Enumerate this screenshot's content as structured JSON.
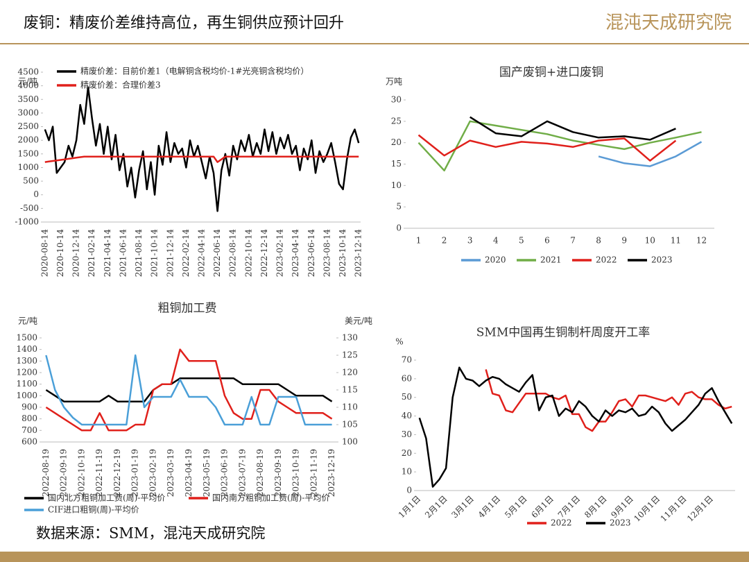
{
  "header": {
    "title": "废铜：精废价差维持高位，再生铜供应预计回升",
    "logo": "混沌天成研究院"
  },
  "footer": "数据来源：SMM，混沌天成研究院",
  "chart_data": [
    {
      "type": "line",
      "ylabel": "元/吨",
      "categories": [
        "2020-08-14",
        null,
        null,
        null,
        "2020-10-14",
        null,
        null,
        null,
        "2020-12-14",
        null,
        null,
        null,
        "2021-02-14",
        null,
        null,
        null,
        "2021-04-14",
        null,
        null,
        null,
        "2021-06-14",
        null,
        null,
        null,
        "2021-08-14",
        null,
        null,
        null,
        "2021-10-14",
        null,
        null,
        null,
        "2021-12-14",
        null,
        null,
        null,
        "2022-02-14",
        null,
        null,
        null,
        "2022-04-14",
        null,
        null,
        null,
        "2022-06-14",
        null,
        null,
        null,
        "2022-08-14",
        null,
        null,
        null,
        "2022-10-14",
        null,
        null,
        null,
        "2022-12-14",
        null,
        null,
        null,
        "2023-02-14",
        null,
        null,
        null,
        "2023-04-14",
        null,
        null,
        null,
        "2023-06-14",
        null,
        null,
        null,
        "2023-08-14",
        null,
        null,
        null,
        "2023-10-14",
        null,
        null,
        null,
        "2023-12-14"
      ],
      "series": [
        {
          "name": "精废价差：目前价差1（电解铜含税均价-1#光亮铜含税均价）",
          "color": "#000000",
          "values": [
            2400,
            2000,
            2500,
            800,
            1000,
            1200,
            1800,
            1400,
            2000,
            3300,
            2600,
            3950,
            2800,
            1800,
            2600,
            1500,
            2500,
            1300,
            2200,
            900,
            1500,
            300,
            1000,
            -100,
            900,
            1600,
            200,
            1200,
            0,
            1800,
            1100,
            2300,
            1200,
            1900,
            1500,
            1700,
            1000,
            2000,
            1400,
            1800,
            1200,
            600,
            1400,
            800,
            -600,
            900,
            1500,
            700,
            1800,
            1300,
            2000,
            1600,
            2200,
            1400,
            1900,
            1500,
            2400,
            1600,
            2300,
            1500,
            2100,
            1700,
            2200,
            1500,
            1800,
            900,
            1700,
            1300,
            2000,
            800,
            1600,
            1200,
            1500,
            1900,
            1200,
            400,
            200,
            1300,
            2100,
            2400,
            1900
          ]
        },
        {
          "name": "精废价差：合理价差3",
          "color": "#e0201b",
          "values": [
            1200,
            1220,
            1240,
            1260,
            1280,
            1300,
            1320,
            1340,
            1360,
            1380,
            1400,
            1400,
            1400,
            1400,
            1400,
            1400,
            1400,
            1400,
            1400,
            1400,
            1400,
            1400,
            1400,
            1400,
            1400,
            1400,
            1400,
            1400,
            1400,
            1400,
            1400,
            1400,
            1400,
            1400,
            1400,
            1400,
            1400,
            1400,
            1400,
            1400,
            1400,
            1400,
            1400,
            1400,
            1200,
            1300,
            1400,
            1400,
            1400,
            1400,
            1400,
            1400,
            1400,
            1400,
            1400,
            1400,
            1400,
            1400,
            1400,
            1400,
            1400,
            1400,
            1400,
            1400,
            1400,
            1400,
            1400,
            1400,
            1400,
            1400,
            1400,
            1400,
            1400,
            1400,
            1400,
            1400,
            1400,
            1400,
            1400,
            1400,
            1400
          ]
        }
      ],
      "ylim": [
        -1000,
        4500
      ],
      "yticks": [
        -1000,
        -500,
        0,
        500,
        1000,
        1500,
        2000,
        2500,
        3000,
        3500,
        4000,
        4500
      ],
      "grid": false
    },
    {
      "type": "line",
      "title": "国产废铜+进口废铜",
      "ylabel": "万吨",
      "categories": [
        "1",
        "2",
        "3",
        "4",
        "5",
        "6",
        "7",
        "8",
        "9",
        "10",
        "11",
        "12"
      ],
      "series": [
        {
          "name": "2020",
          "color": "#5b9bd5",
          "values": [
            null,
            null,
            null,
            null,
            null,
            null,
            null,
            16.8,
            15.2,
            14.5,
            16.8,
            20.2
          ]
        },
        {
          "name": "2021",
          "color": "#70ad47",
          "values": [
            20,
            13.5,
            25,
            24,
            23,
            22,
            20.5,
            19.5,
            18.5,
            20,
            21.2,
            22.5
          ]
        },
        {
          "name": "2022",
          "color": "#e0201b",
          "values": [
            21.8,
            17,
            20.5,
            19,
            20.2,
            19.8,
            19,
            20.5,
            21,
            15.8,
            20.5,
            null
          ]
        },
        {
          "name": "2023",
          "color": "#000000",
          "values": [
            null,
            null,
            26,
            22.2,
            21.5,
            25,
            22.5,
            21.2,
            21.5,
            20.7,
            23.3,
            null
          ]
        }
      ],
      "ylim": [
        0,
        30
      ],
      "yticks": [
        0,
        5,
        10,
        15,
        20,
        25,
        30
      ],
      "grid": false
    },
    {
      "type": "line",
      "title": "粗铜加工费",
      "ylabel": "元/吨",
      "y2label": "美元/吨",
      "categories": [
        "2022-08-19",
        null,
        "2022-09-19",
        null,
        "2022-10-19",
        null,
        "2022-11-19",
        null,
        "2022-12-19",
        null,
        "2023-01-19",
        null,
        "2023-02-19",
        null,
        "2023-03-19",
        null,
        "2023-04-19",
        null,
        "2023-05-19",
        null,
        "2023-06-19",
        null,
        "2023-07-19",
        null,
        "2023-08-19",
        null,
        "2023-09-19",
        null,
        "2023-10-19",
        null,
        "2023-11-19",
        null,
        "2023-12-19"
      ],
      "series": [
        {
          "name": "国内北方粗铜加工费(周)-平均价",
          "color": "#000000",
          "values": [
            1050,
            1000,
            950,
            950,
            950,
            950,
            950,
            1000,
            950,
            950,
            950,
            950,
            1050,
            1100,
            1100,
            1150,
            1150,
            1150,
            1150,
            1150,
            1150,
            1150,
            1100,
            1100,
            1100,
            1100,
            1100,
            1050,
            1000,
            1000,
            1000,
            1000,
            950
          ]
        },
        {
          "name": "国内南方粗铜加工费(周)-平均价",
          "color": "#e0201b",
          "values": [
            900,
            850,
            800,
            750,
            700,
            700,
            850,
            700,
            700,
            700,
            750,
            750,
            1050,
            1100,
            1100,
            1400,
            1300,
            1300,
            1300,
            1300,
            1000,
            850,
            800,
            800,
            1050,
            1050,
            950,
            900,
            850,
            850,
            850,
            850,
            800
          ]
        },
        {
          "name": "CIF进口粗铜(周)-平均价",
          "color": "#4a9fd8",
          "axis": "y2",
          "values": [
            125,
            115,
            110,
            107,
            105,
            105,
            105,
            105,
            105,
            105,
            125,
            110,
            113,
            113,
            113,
            118,
            113,
            113,
            113,
            110,
            105,
            105,
            105,
            113,
            105,
            105,
            113,
            113,
            113,
            105,
            105,
            105,
            105
          ]
        }
      ],
      "ylim": [
        600,
        1500
      ],
      "yticks": [
        600,
        700,
        800,
        900,
        1000,
        1100,
        1200,
        1300,
        1400,
        1500
      ],
      "y2lim": [
        100,
        130
      ],
      "y2ticks": [
        100,
        105,
        110,
        115,
        120,
        125,
        130
      ],
      "grid": false
    },
    {
      "type": "line",
      "title": "SMM中国再生铜制杆周度开工率",
      "ylabel": "%",
      "categories": [
        "1月1日",
        null,
        null,
        null,
        "2月1日",
        null,
        null,
        null,
        "3月1日",
        null,
        null,
        null,
        "4月1日",
        null,
        null,
        null,
        "5月1日",
        null,
        null,
        null,
        "6月1日",
        null,
        null,
        null,
        "7月1日",
        null,
        null,
        null,
        "8月1日",
        null,
        null,
        null,
        "9月1日",
        null,
        null,
        null,
        "10月1日",
        null,
        null,
        null,
        "11月1日",
        null,
        null,
        null,
        "12月1日",
        null,
        null,
        null
      ],
      "series": [
        {
          "name": "2022",
          "color": "#e0201b",
          "values": [
            null,
            null,
            null,
            null,
            null,
            null,
            null,
            null,
            null,
            null,
            65,
            52,
            51,
            43,
            42,
            47,
            52,
            52,
            52,
            52,
            50,
            49,
            51,
            41,
            41,
            34,
            32,
            37,
            37,
            42,
            48,
            49,
            45,
            51,
            51,
            50,
            49,
            48,
            50,
            46,
            52,
            53,
            50,
            49,
            49,
            46,
            44,
            45
          ]
        },
        {
          "name": "2023",
          "color": "#000000",
          "values": [
            39,
            28,
            2,
            6,
            12,
            50,
            66,
            60,
            59,
            56,
            59,
            61,
            60,
            57,
            55,
            53,
            58,
            62,
            43,
            50,
            51,
            40,
            44,
            42,
            48,
            45,
            40,
            37,
            43,
            40,
            43,
            42,
            44,
            40,
            41,
            45,
            42,
            36,
            32,
            35,
            38,
            42,
            46,
            52,
            55,
            48,
            42,
            36
          ]
        }
      ],
      "ylim": [
        0,
        70
      ],
      "yticks": [
        0,
        10,
        20,
        30,
        40,
        50,
        60,
        70
      ],
      "grid": false
    }
  ]
}
